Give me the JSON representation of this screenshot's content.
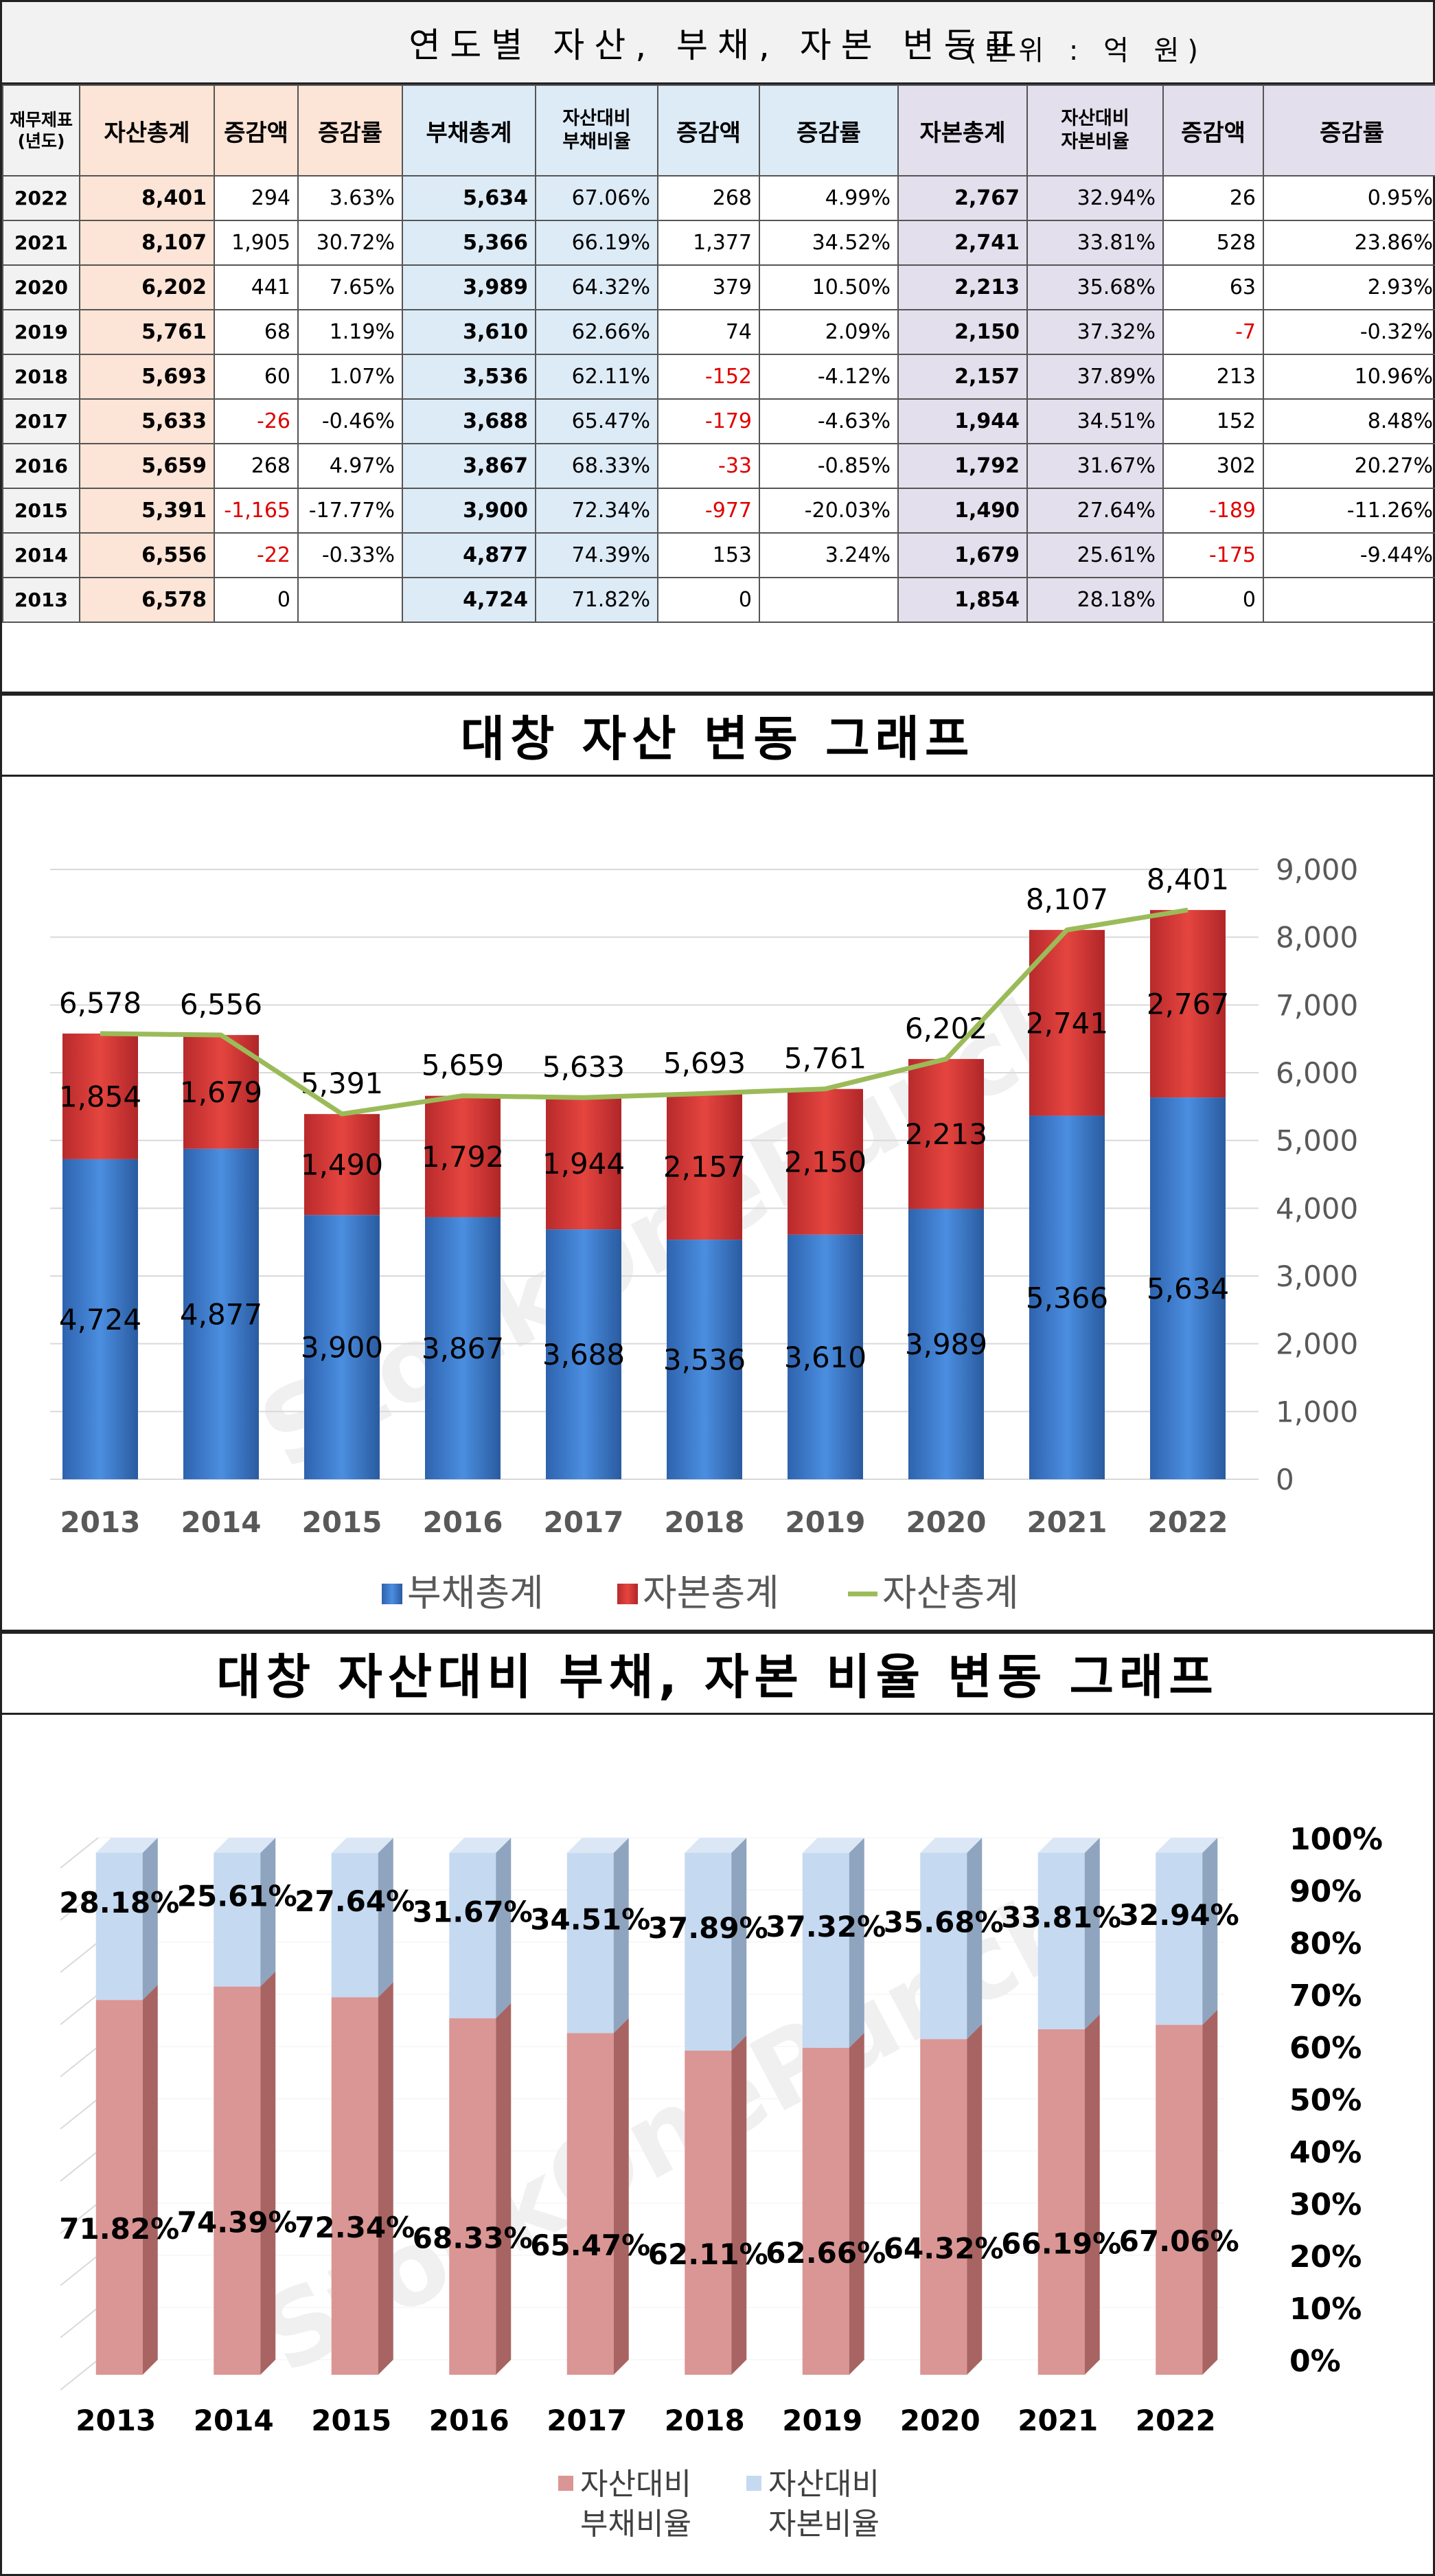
{
  "table_section": {
    "title": "연도별 자산, 부채, 자본 변동표",
    "unit": "(단위 : 억 원)",
    "headers": {
      "year": "재무제표\n(년도)",
      "asset_total": "자산총계",
      "asset_change": "증감액",
      "asset_rate": "증감률",
      "debt_total": "부채총계",
      "debt_ratio": "자산대비\n부채비율",
      "debt_change": "증감액",
      "debt_rate": "증감률",
      "equity_total": "자본총계",
      "equity_ratio": "자산대비\n자본비율",
      "equity_change": "증감액",
      "equity_rate": "증감률"
    },
    "rows": [
      {
        "year": "2022",
        "asset": "8,401",
        "asset_chg": "294",
        "asset_rate": "3.63%",
        "debt": "5,634",
        "debt_ratio": "67.06%",
        "debt_chg": "268",
        "debt_rate": "4.99%",
        "eq": "2,767",
        "eq_ratio": "32.94%",
        "eq_chg": "26",
        "eq_rate": "0.95%"
      },
      {
        "year": "2021",
        "asset": "8,107",
        "asset_chg": "1,905",
        "asset_rate": "30.72%",
        "debt": "5,366",
        "debt_ratio": "66.19%",
        "debt_chg": "1,377",
        "debt_rate": "34.52%",
        "eq": "2,741",
        "eq_ratio": "33.81%",
        "eq_chg": "528",
        "eq_rate": "23.86%"
      },
      {
        "year": "2020",
        "asset": "6,202",
        "asset_chg": "441",
        "asset_rate": "7.65%",
        "debt": "3,989",
        "debt_ratio": "64.32%",
        "debt_chg": "379",
        "debt_rate": "10.50%",
        "eq": "2,213",
        "eq_ratio": "35.68%",
        "eq_chg": "63",
        "eq_rate": "2.93%"
      },
      {
        "year": "2019",
        "asset": "5,761",
        "asset_chg": "68",
        "asset_rate": "1.19%",
        "debt": "3,610",
        "debt_ratio": "62.66%",
        "debt_chg": "74",
        "debt_rate": "2.09%",
        "eq": "2,150",
        "eq_ratio": "37.32%",
        "eq_chg": "-7",
        "eq_rate": "-0.32%"
      },
      {
        "year": "2018",
        "asset": "5,693",
        "asset_chg": "60",
        "asset_rate": "1.07%",
        "debt": "3,536",
        "debt_ratio": "62.11%",
        "debt_chg": "-152",
        "debt_rate": "-4.12%",
        "eq": "2,157",
        "eq_ratio": "37.89%",
        "eq_chg": "213",
        "eq_rate": "10.96%"
      },
      {
        "year": "2017",
        "asset": "5,633",
        "asset_chg": "-26",
        "asset_rate": "-0.46%",
        "debt": "3,688",
        "debt_ratio": "65.47%",
        "debt_chg": "-179",
        "debt_rate": "-4.63%",
        "eq": "1,944",
        "eq_ratio": "34.51%",
        "eq_chg": "152",
        "eq_rate": "8.48%"
      },
      {
        "year": "2016",
        "asset": "5,659",
        "asset_chg": "268",
        "asset_rate": "4.97%",
        "debt": "3,867",
        "debt_ratio": "68.33%",
        "debt_chg": "-33",
        "debt_rate": "-0.85%",
        "eq": "1,792",
        "eq_ratio": "31.67%",
        "eq_chg": "302",
        "eq_rate": "20.27%"
      },
      {
        "year": "2015",
        "asset": "5,391",
        "asset_chg": "-1,165",
        "asset_rate": "-17.77%",
        "debt": "3,900",
        "debt_ratio": "72.34%",
        "debt_chg": "-977",
        "debt_rate": "-20.03%",
        "eq": "1,490",
        "eq_ratio": "27.64%",
        "eq_chg": "-189",
        "eq_rate": "-11.26%"
      },
      {
        "year": "2014",
        "asset": "6,556",
        "asset_chg": "-22",
        "asset_rate": "-0.33%",
        "debt": "4,877",
        "debt_ratio": "74.39%",
        "debt_chg": "153",
        "debt_rate": "3.24%",
        "eq": "1,679",
        "eq_ratio": "25.61%",
        "eq_chg": "-175",
        "eq_rate": "-9.44%"
      },
      {
        "year": "2013",
        "asset": "6,578",
        "asset_chg": "0",
        "asset_rate": "",
        "debt": "4,724",
        "debt_ratio": "71.82%",
        "debt_chg": "0",
        "debt_rate": "",
        "eq": "1,854",
        "eq_ratio": "28.18%",
        "eq_chg": "0",
        "eq_rate": ""
      }
    ],
    "colors": {
      "asset_bg": "#fce4d6",
      "debt_bg": "#ddebf7",
      "equity_bg": "#e4dfec",
      "negative": "#e00000"
    }
  },
  "chart1_section": {
    "title": "대창 자산 변동 그래프",
    "watermark": "StockOnePunch"
  },
  "chart2_section": {
    "title": "대창 자산대비 부채, 자본 비율 변동 그래프",
    "watermark": "StockOnePunch"
  },
  "chart_data": [
    {
      "type": "bar",
      "stacked": true,
      "title": "대창 자산 변동 그래프",
      "categories": [
        "2013",
        "2014",
        "2015",
        "2016",
        "2017",
        "2018",
        "2019",
        "2020",
        "2021",
        "2022"
      ],
      "series": [
        {
          "name": "부채총계",
          "kind": "bar",
          "color": "#3a78c8",
          "values": [
            4724,
            4877,
            3900,
            3867,
            3688,
            3536,
            3610,
            3989,
            5366,
            5634
          ]
        },
        {
          "name": "자본총계",
          "kind": "bar",
          "color": "#d9383a",
          "values": [
            1854,
            1679,
            1490,
            1792,
            1944,
            2157,
            2150,
            2213,
            2741,
            2767
          ]
        },
        {
          "name": "자산총계",
          "kind": "line",
          "color": "#9bbb59",
          "values": [
            6578,
            6556,
            5391,
            5659,
            5633,
            5693,
            5761,
            6202,
            8107,
            8401
          ]
        }
      ],
      "ylim": [
        0,
        9000
      ],
      "yticks": [
        "0",
        "1,000",
        "2,000",
        "3,000",
        "4,000",
        "5,000",
        "6,000",
        "7,000",
        "8,000",
        "9,000"
      ],
      "y_axis_side": "right",
      "grid": true,
      "legend": "bottom"
    },
    {
      "type": "bar",
      "stacked": true,
      "percent": true,
      "title": "대창 자산대비 부채, 자본 비율 변동 그래프",
      "categories": [
        "2013",
        "2014",
        "2015",
        "2016",
        "2017",
        "2018",
        "2019",
        "2020",
        "2021",
        "2022"
      ],
      "series": [
        {
          "name": "자산대비 부채비율",
          "color": "#da9694",
          "values": [
            71.82,
            74.39,
            72.34,
            68.33,
            65.47,
            62.11,
            62.66,
            64.32,
            66.19,
            67.06
          ],
          "labels": [
            "71.82%",
            "74.39%",
            "72.34%",
            "68.33%",
            "65.47%",
            "62.11%",
            "62.66%",
            "64.32%",
            "66.19%",
            "67.06%"
          ]
        },
        {
          "name": "자산대비 자본비율",
          "color": "#c5d9f1",
          "values": [
            28.18,
            25.61,
            27.64,
            31.67,
            34.51,
            37.89,
            37.32,
            35.68,
            33.81,
            32.94
          ],
          "labels": [
            "28.18%",
            "25.61%",
            "27.64%",
            "31.67%",
            "34.51%",
            "37.89%",
            "37.32%",
            "35.68%",
            "33.81%",
            "32.94%"
          ]
        }
      ],
      "ylim": [
        0,
        100
      ],
      "yticks": [
        "0%",
        "10%",
        "20%",
        "30%",
        "40%",
        "50%",
        "60%",
        "70%",
        "80%",
        "90%",
        "100%"
      ],
      "y_axis_side": "right",
      "legend": "bottom"
    }
  ]
}
